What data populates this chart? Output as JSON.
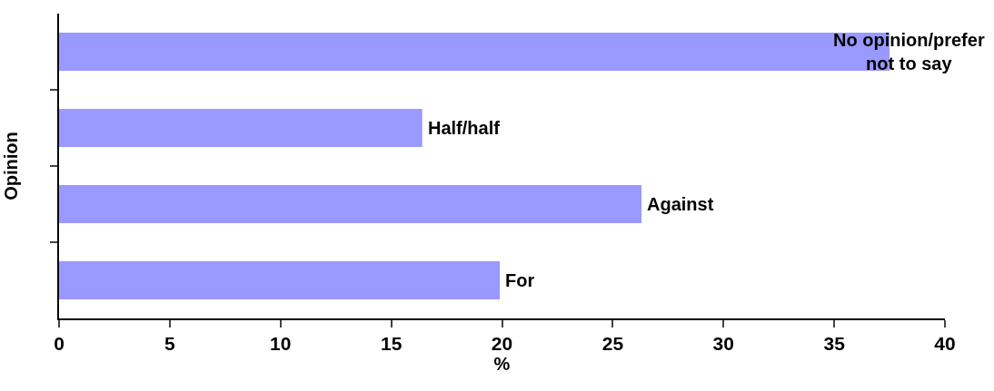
{
  "chart_data": {
    "type": "bar",
    "orientation": "horizontal",
    "xlabel": "%",
    "ylabel": "Opinion",
    "categories": [
      "No opinion/prefer not to say",
      "Half/half",
      "Against",
      "For"
    ],
    "values": [
      37.5,
      16.4,
      26.3,
      19.9
    ],
    "color": "#9999ff",
    "xlim": [
      0,
      40
    ],
    "xticks": [
      0,
      5,
      10,
      15,
      20,
      25,
      30,
      35,
      40
    ],
    "tick_labels": "x"
  }
}
